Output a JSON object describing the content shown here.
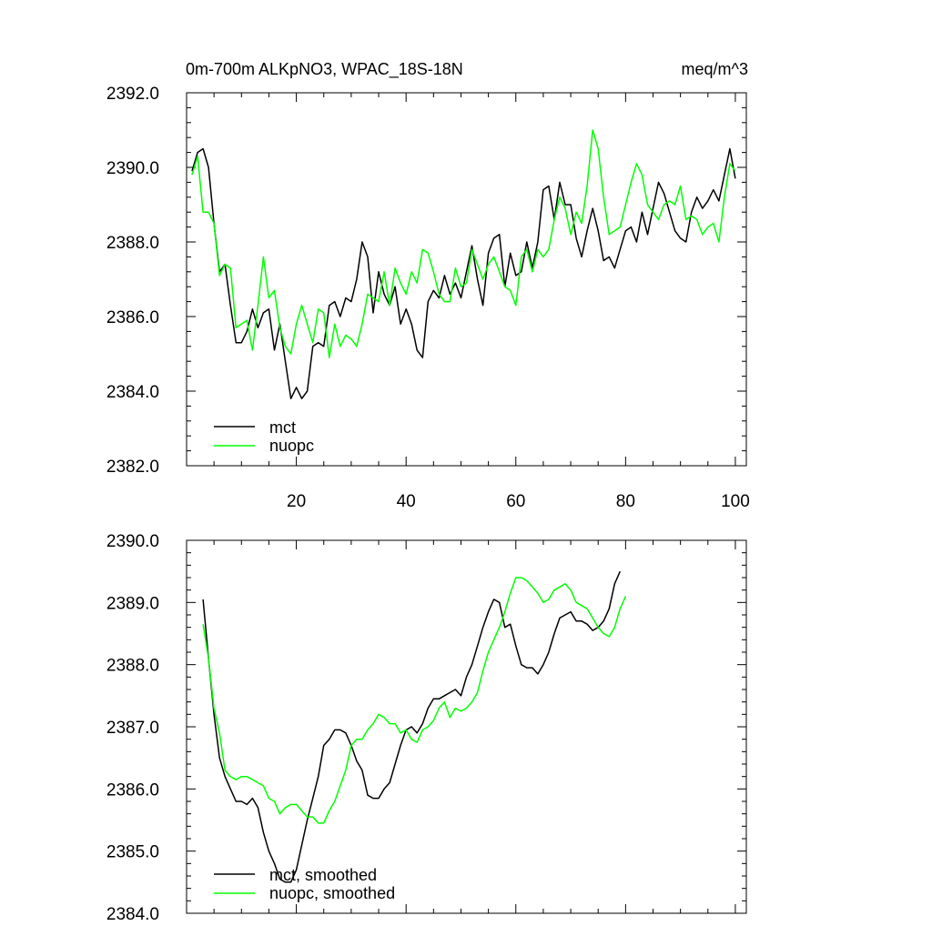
{
  "chart_data": [
    {
      "type": "line",
      "title": "0m-700m ALKpNO3, WPAC_18S-18N",
      "units": "meq/m^3",
      "xlim": [
        0,
        102
      ],
      "ylim": [
        2382,
        2392
      ],
      "xticks": [
        20,
        40,
        60,
        80,
        100
      ],
      "yticks": [
        2382,
        2384,
        2386,
        2388,
        2390,
        2392
      ],
      "ytick_labels": [
        "2382.0",
        "2384.0",
        "2386.0",
        "2388.0",
        "2390.0",
        "2392.0"
      ],
      "x_start": 1,
      "legend_position": "bottom-left",
      "series": [
        {
          "name": "mct",
          "color": "#000000",
          "values": [
            2389.9,
            2390.4,
            2390.5,
            2390.0,
            2388.5,
            2387.2,
            2387.4,
            2386.3,
            2385.3,
            2385.3,
            2385.6,
            2386.2,
            2385.7,
            2386.1,
            2386.2,
            2385.1,
            2385.8,
            2384.8,
            2383.8,
            2384.1,
            2383.8,
            2384.0,
            2385.2,
            2385.3,
            2385.2,
            2386.3,
            2386.4,
            2386.0,
            2386.5,
            2386.4,
            2387.0,
            2388.0,
            2387.6,
            2386.1,
            2387.2,
            2386.6,
            2386.3,
            2386.8,
            2385.8,
            2386.2,
            2385.8,
            2385.1,
            2384.9,
            2386.4,
            2386.7,
            2386.5,
            2387.1,
            2386.6,
            2386.9,
            2386.5,
            2387.2,
            2387.9,
            2387.0,
            2386.3,
            2387.7,
            2388.1,
            2388.2,
            2386.8,
            2387.7,
            2387.1,
            2387.2,
            2388.0,
            2387.3,
            2388.0,
            2389.4,
            2389.5,
            2388.6,
            2389.6,
            2389.0,
            2389.0,
            2388.1,
            2387.6,
            2388.3,
            2388.9,
            2388.3,
            2387.5,
            2387.6,
            2387.3,
            2387.8,
            2388.3,
            2388.4,
            2388.0,
            2388.8,
            2388.2,
            2388.9,
            2389.6,
            2389.3,
            2388.8,
            2388.3,
            2388.1,
            2388.0,
            2388.8,
            2389.2,
            2388.9,
            2389.1,
            2389.4,
            2389.1,
            2389.8,
            2390.5,
            2389.7
          ]
        },
        {
          "name": "nuopc",
          "color": "#00ff00",
          "values": [
            2389.8,
            2390.3,
            2388.8,
            2388.8,
            2388.5,
            2387.1,
            2387.4,
            2387.3,
            2385.7,
            2385.8,
            2385.9,
            2385.1,
            2386.3,
            2387.6,
            2386.5,
            2386.7,
            2385.7,
            2385.2,
            2385.0,
            2385.8,
            2386.3,
            2385.8,
            2385.3,
            2386.2,
            2386.1,
            2384.9,
            2385.8,
            2385.2,
            2385.5,
            2385.4,
            2385.2,
            2385.8,
            2386.6,
            2386.5,
            2386.4,
            2387.2,
            2386.3,
            2387.3,
            2386.9,
            2386.6,
            2387.2,
            2386.9,
            2387.8,
            2387.7,
            2387.2,
            2386.6,
            2386.4,
            2386.4,
            2387.3,
            2386.8,
            2386.9,
            2387.8,
            2387.4,
            2387.0,
            2387.4,
            2387.6,
            2387.2,
            2386.8,
            2386.7,
            2386.3,
            2387.6,
            2387.8,
            2387.2,
            2387.8,
            2387.6,
            2387.8,
            2388.6,
            2389.2,
            2388.9,
            2388.2,
            2388.8,
            2388.5,
            2389.5,
            2391.0,
            2390.5,
            2389.2,
            2388.2,
            2388.3,
            2388.4,
            2389.0,
            2389.6,
            2390.1,
            2389.8,
            2389.0,
            2388.8,
            2388.6,
            2389.0,
            2389.1,
            2389.0,
            2389.5,
            2388.6,
            2388.7,
            2388.6,
            2388.2,
            2388.4,
            2388.5,
            2388.0,
            2389.2,
            2390.1,
            2389.9
          ]
        }
      ]
    },
    {
      "type": "line",
      "title": "",
      "xlim": [
        0,
        102
      ],
      "ylim": [
        2384,
        2390
      ],
      "xticks": [
        20,
        40,
        60,
        80,
        100
      ],
      "yticks": [
        2384,
        2385,
        2386,
        2387,
        2388,
        2389,
        2390
      ],
      "ytick_labels": [
        "2384.0",
        "2385.0",
        "2386.0",
        "2387.0",
        "2388.0",
        "2389.0",
        "2390.0"
      ],
      "x_start": 3,
      "legend_position": "bottom-left",
      "series": [
        {
          "name": "mct, smoothed",
          "color": "#000000",
          "values": [
            2389.05,
            2388.1,
            2387.2,
            2386.5,
            2386.2,
            2386.0,
            2385.8,
            2385.8,
            2385.75,
            2385.85,
            2385.7,
            2385.3,
            2385.0,
            2384.8,
            2384.55,
            2384.5,
            2384.5,
            2384.7,
            2385.1,
            2385.5,
            2385.85,
            2386.2,
            2386.7,
            2386.8,
            2386.95,
            2386.95,
            2386.9,
            2386.7,
            2386.45,
            2386.3,
            2385.9,
            2385.85,
            2385.85,
            2386.0,
            2386.1,
            2386.4,
            2386.7,
            2386.95,
            2387.0,
            2386.9,
            2387.05,
            2387.3,
            2387.45,
            2387.45,
            2387.5,
            2387.55,
            2387.6,
            2387.5,
            2387.8,
            2388.0,
            2388.3,
            2388.6,
            2388.85,
            2389.05,
            2389.0,
            2388.6,
            2388.65,
            2388.3,
            2388.0,
            2387.95,
            2387.95,
            2387.85,
            2388.0,
            2388.2,
            2388.5,
            2388.75,
            2388.8,
            2388.85,
            2388.7,
            2388.7,
            2388.65,
            2388.55,
            2388.6,
            2388.7,
            2388.9,
            2389.3,
            2389.5
          ]
        },
        {
          "name": "nuopc, smoothed",
          "color": "#00ff00",
          "values": [
            2388.65,
            2388.1,
            2387.3,
            2386.9,
            2386.3,
            2386.2,
            2386.15,
            2386.2,
            2386.2,
            2386.15,
            2386.1,
            2386.05,
            2385.85,
            2385.8,
            2385.6,
            2385.7,
            2385.75,
            2385.75,
            2385.65,
            2385.55,
            2385.55,
            2385.45,
            2385.45,
            2385.65,
            2385.8,
            2386.05,
            2386.3,
            2386.7,
            2386.8,
            2386.8,
            2386.95,
            2387.05,
            2387.2,
            2387.15,
            2387.05,
            2387.05,
            2386.9,
            2386.95,
            2386.8,
            2386.75,
            2386.95,
            2387.0,
            2387.1,
            2387.3,
            2387.4,
            2387.15,
            2387.3,
            2387.25,
            2387.3,
            2387.4,
            2387.55,
            2387.9,
            2388.2,
            2388.4,
            2388.6,
            2388.85,
            2389.15,
            2389.4,
            2389.4,
            2389.35,
            2389.25,
            2389.15,
            2389.0,
            2389.05,
            2389.2,
            2389.25,
            2389.3,
            2389.2,
            2389.0,
            2388.95,
            2388.9,
            2388.75,
            2388.6,
            2388.5,
            2388.45,
            2388.6,
            2388.9,
            2389.1
          ]
        }
      ]
    }
  ]
}
